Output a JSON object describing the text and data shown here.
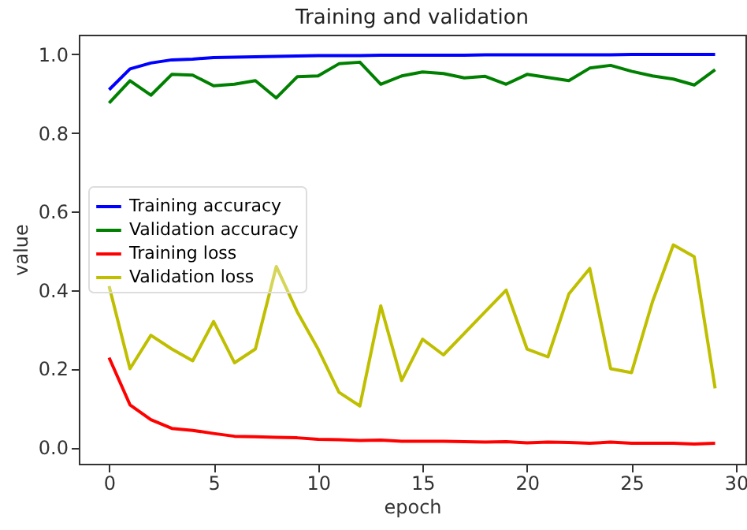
{
  "chart_data": {
    "type": "line",
    "title": "Training and validation",
    "xlabel": "epoch",
    "ylabel": "value",
    "x": [
      0,
      1,
      2,
      3,
      4,
      5,
      6,
      7,
      8,
      9,
      10,
      11,
      12,
      13,
      14,
      15,
      16,
      17,
      18,
      19,
      20,
      21,
      22,
      23,
      24,
      25,
      26,
      27,
      28,
      29
    ],
    "xlim": [
      -1.45,
      30.45
    ],
    "xticks": [
      0,
      5,
      10,
      15,
      20,
      25,
      30
    ],
    "ylim": [
      -0.042,
      1.05
    ],
    "yticks": [
      {
        "value": 0,
        "label": "0.0"
      },
      0.2,
      0.4,
      0.6,
      0.8,
      {
        "value": 1,
        "label": "1.0"
      }
    ],
    "legend": "center left",
    "grid": false,
    "series": [
      {
        "name": "Training accuracy",
        "color": "#0000ff",
        "values": [
          0.91,
          0.963,
          0.978,
          0.986,
          0.988,
          0.992,
          0.993,
          0.994,
          0.995,
          0.996,
          0.997,
          0.997,
          0.997,
          0.998,
          0.998,
          0.998,
          0.998,
          0.998,
          0.999,
          0.999,
          0.999,
          0.999,
          0.999,
          0.999,
          0.999,
          1.0,
          1.0,
          1.0,
          1.0,
          1.0
        ]
      },
      {
        "name": "Validation accuracy",
        "color": "#008000",
        "values": [
          0.876,
          0.933,
          0.896,
          0.949,
          0.947,
          0.92,
          0.924,
          0.933,
          0.889,
          0.943,
          0.945,
          0.976,
          0.98,
          0.924,
          0.945,
          0.955,
          0.951,
          0.94,
          0.944,
          0.924,
          0.949,
          0.941,
          0.933,
          0.965,
          0.972,
          0.957,
          0.945,
          0.937,
          0.922,
          0.961
        ]
      },
      {
        "name": "Training loss",
        "color": "#ff0000",
        "values": [
          0.228,
          0.108,
          0.07,
          0.048,
          0.043,
          0.035,
          0.028,
          0.027,
          0.025,
          0.024,
          0.02,
          0.019,
          0.017,
          0.018,
          0.015,
          0.015,
          0.015,
          0.014,
          0.013,
          0.014,
          0.011,
          0.013,
          0.012,
          0.01,
          0.013,
          0.01,
          0.01,
          0.01,
          0.008,
          0.01
        ]
      },
      {
        "name": "Validation loss",
        "color": "#bfbf00",
        "values": [
          0.41,
          0.2,
          0.285,
          0.25,
          0.22,
          0.32,
          0.215,
          0.25,
          0.46,
          0.345,
          0.25,
          0.14,
          0.105,
          0.36,
          0.17,
          0.275,
          0.235,
          0.29,
          0.345,
          0.4,
          0.25,
          0.23,
          0.39,
          0.455,
          0.2,
          0.19,
          0.37,
          0.515,
          0.485,
          0.15
        ]
      }
    ]
  }
}
